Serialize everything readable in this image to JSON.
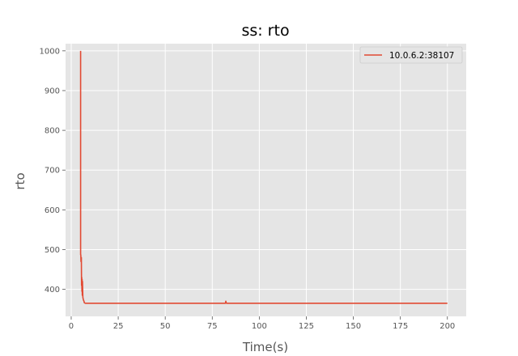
{
  "chart_data": {
    "type": "line",
    "title": "ss: rto",
    "xlabel": "Time(s)",
    "ylabel": "rto",
    "xlim": [
      -3,
      210
    ],
    "ylim": [
      332,
      1018
    ],
    "xticks": [
      0,
      25,
      50,
      75,
      100,
      125,
      150,
      175,
      200
    ],
    "yticks": [
      400,
      500,
      600,
      700,
      800,
      900,
      1000
    ],
    "grid": true,
    "legend_position": "top-right",
    "series": [
      {
        "name": "10.0.6.2:38107",
        "color": "#E24A33",
        "x": [
          5.0,
          5.0,
          5.1,
          5.2,
          5.3,
          5.4,
          5.5,
          5.6,
          5.7,
          5.8,
          5.9,
          6.0,
          6.2,
          6.4,
          6.6,
          6.8,
          7.0,
          7.5,
          8.0,
          10,
          20,
          40,
          60,
          80,
          82.0,
          82.2,
          82.5,
          100,
          125,
          150,
          175,
          200
        ],
        "y": [
          1000,
          487,
          487,
          470,
          470,
          480,
          410,
          430,
          395,
          425,
          385,
          420,
          380,
          375,
          372,
          370,
          366,
          365,
          365,
          365,
          365,
          365,
          365,
          365,
          365,
          370,
          365,
          365,
          365,
          365,
          365,
          365
        ]
      }
    ]
  }
}
